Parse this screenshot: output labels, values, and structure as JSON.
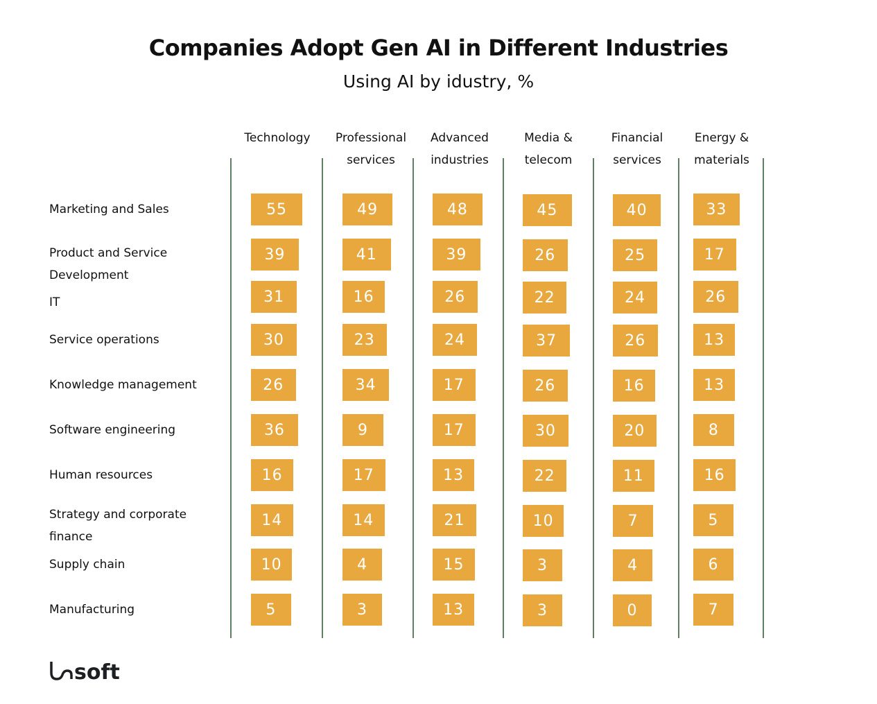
{
  "chart_data": {
    "type": "table",
    "title": "Companies Adopt Gen AI in Different Industries",
    "subtitle": "Using AI by idustry, %",
    "columns": [
      [
        "Technology",
        ""
      ],
      [
        "Professional",
        "services"
      ],
      [
        "Advanced",
        "industries"
      ],
      [
        "Media &",
        "telecom"
      ],
      [
        "Financial",
        "services"
      ],
      [
        "Energy &",
        "materials"
      ]
    ],
    "rows": [
      {
        "label": [
          "Marketing and Sales"
        ],
        "values": [
          55,
          49,
          48,
          45,
          40,
          33
        ]
      },
      {
        "label": [
          "Product and Service",
          "Development"
        ],
        "values": [
          39,
          41,
          39,
          26,
          25,
          17
        ]
      },
      {
        "label": [
          "IT"
        ],
        "values": [
          31,
          16,
          26,
          22,
          24,
          26
        ]
      },
      {
        "label": [
          "Service operations"
        ],
        "values": [
          30,
          23,
          24,
          37,
          26,
          13
        ]
      },
      {
        "label": [
          "Knowledge management"
        ],
        "values": [
          26,
          34,
          17,
          26,
          16,
          13
        ]
      },
      {
        "label": [
          "Software engineering"
        ],
        "values": [
          36,
          9,
          17,
          30,
          20,
          8
        ]
      },
      {
        "label": [
          "Human resources"
        ],
        "values": [
          16,
          17,
          13,
          22,
          11,
          16
        ]
      },
      {
        "label": [
          "Strategy and corporate",
          "finance"
        ],
        "values": [
          14,
          14,
          21,
          10,
          7,
          5
        ]
      },
      {
        "label": [
          "Supply chain"
        ],
        "values": [
          10,
          4,
          15,
          3,
          4,
          6
        ]
      },
      {
        "label": [
          "Manufacturing"
        ],
        "values": [
          5,
          3,
          13,
          3,
          0,
          7
        ]
      }
    ],
    "cell_color": "#e8a83e",
    "divider_color": "#5e7f64"
  },
  "logo": "uasoft"
}
